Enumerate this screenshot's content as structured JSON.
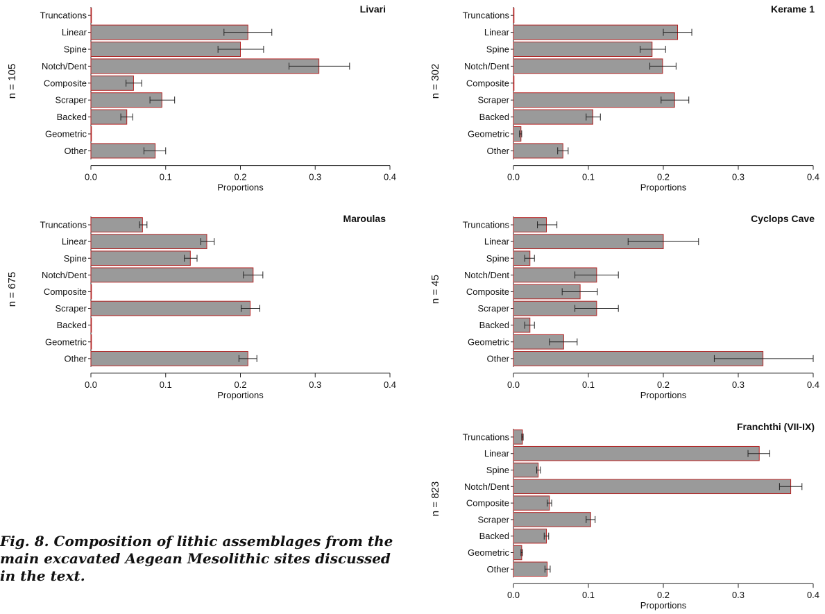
{
  "caption": "Fig. 8. Composition of lithic assemblages from the main excavated Aegean Mesolithic sites discussed in the text.",
  "chart_data": [
    {
      "type": "bar",
      "orientation": "horizontal",
      "title": "Livari",
      "n_label": "n = 105",
      "xlabel": "Proportions",
      "xlim": [
        0,
        0.4
      ],
      "xticks": [
        "0.0",
        "0.1",
        "0.2",
        "0.3",
        "0.4"
      ],
      "categories": [
        "Truncations",
        "Linear",
        "Spine",
        "Notch/Dent",
        "Composite",
        "Scraper",
        "Backed",
        "Geometric",
        "Other"
      ],
      "values": [
        0.0,
        0.21,
        0.2,
        0.305,
        0.057,
        0.095,
        0.048,
        0.0,
        0.086
      ],
      "error_low": [
        0.0,
        0.178,
        0.17,
        0.265,
        0.047,
        0.079,
        0.04,
        0.0,
        0.071
      ],
      "error_high": [
        0.0,
        0.242,
        0.231,
        0.346,
        0.068,
        0.112,
        0.056,
        0.0,
        0.1
      ]
    },
    {
      "type": "bar",
      "orientation": "horizontal",
      "title": "Kerame 1",
      "n_label": "n = 302",
      "xlabel": "Proportions",
      "xlim": [
        0,
        0.4
      ],
      "xticks": [
        "0.0",
        "0.1",
        "0.2",
        "0.3",
        "0.4"
      ],
      "categories": [
        "Truncations",
        "Linear",
        "Spine",
        "Notch/Dent",
        "Composite",
        "Scraper",
        "Backed",
        "Geometric",
        "Other"
      ],
      "values": [
        0.0,
        0.219,
        0.185,
        0.199,
        0.0,
        0.215,
        0.106,
        0.01,
        0.066
      ],
      "error_low": [
        0.0,
        0.2,
        0.169,
        0.182,
        0.0,
        0.197,
        0.097,
        0.008,
        0.059
      ],
      "error_high": [
        0.0,
        0.238,
        0.203,
        0.217,
        0.0,
        0.234,
        0.116,
        0.011,
        0.073
      ]
    },
    {
      "type": "bar",
      "orientation": "horizontal",
      "title": "Maroulas",
      "n_label": "n = 675",
      "xlabel": "Proportions",
      "xlim": [
        0,
        0.4
      ],
      "xticks": [
        "0.0",
        "0.1",
        "0.2",
        "0.3",
        "0.4"
      ],
      "categories": [
        "Truncations",
        "Linear",
        "Spine",
        "Notch/Dent",
        "Composite",
        "Scraper",
        "Backed",
        "Geometric",
        "Other"
      ],
      "values": [
        0.069,
        0.155,
        0.133,
        0.217,
        0.0,
        0.213,
        0.0,
        0.0,
        0.21
      ],
      "error_low": [
        0.065,
        0.147,
        0.125,
        0.204,
        0.0,
        0.201,
        0.0,
        0.0,
        0.198
      ],
      "error_high": [
        0.075,
        0.165,
        0.142,
        0.23,
        0.0,
        0.226,
        0.0,
        0.0,
        0.222
      ]
    },
    {
      "type": "bar",
      "orientation": "horizontal",
      "title": "Cyclops Cave",
      "n_label": "n = 45",
      "xlabel": "Proportions",
      "xlim": [
        0,
        0.4
      ],
      "xticks": [
        "0.0",
        "0.1",
        "0.2",
        "0.3",
        "0.4"
      ],
      "categories": [
        "Truncations",
        "Linear",
        "Spine",
        "Notch/Dent",
        "Composite",
        "Scraper",
        "Backed",
        "Geometric",
        "Other"
      ],
      "values": [
        0.044,
        0.2,
        0.022,
        0.111,
        0.089,
        0.111,
        0.022,
        0.067,
        0.333
      ],
      "error_low": [
        0.032,
        0.153,
        0.015,
        0.082,
        0.065,
        0.082,
        0.015,
        0.048,
        0.268
      ],
      "error_high": [
        0.058,
        0.247,
        0.028,
        0.14,
        0.112,
        0.14,
        0.028,
        0.085,
        0.4
      ]
    },
    {
      "type": "bar",
      "orientation": "horizontal",
      "title": "Franchthi (VII-IX)",
      "n_label": "n = 823",
      "xlabel": "Proportions",
      "xlim": [
        0,
        0.4
      ],
      "xticks": [
        "0.0",
        "0.1",
        "0.2",
        "0.3",
        "0.4"
      ],
      "categories": [
        "Truncations",
        "Linear",
        "Spine",
        "Notch/Dent",
        "Composite",
        "Scraper",
        "Backed",
        "Geometric",
        "Other"
      ],
      "values": [
        0.012,
        0.328,
        0.033,
        0.37,
        0.048,
        0.103,
        0.044,
        0.011,
        0.045
      ],
      "error_low": [
        0.011,
        0.313,
        0.031,
        0.355,
        0.045,
        0.097,
        0.041,
        0.01,
        0.042
      ],
      "error_high": [
        0.013,
        0.342,
        0.036,
        0.385,
        0.051,
        0.109,
        0.047,
        0.012,
        0.049
      ]
    }
  ]
}
